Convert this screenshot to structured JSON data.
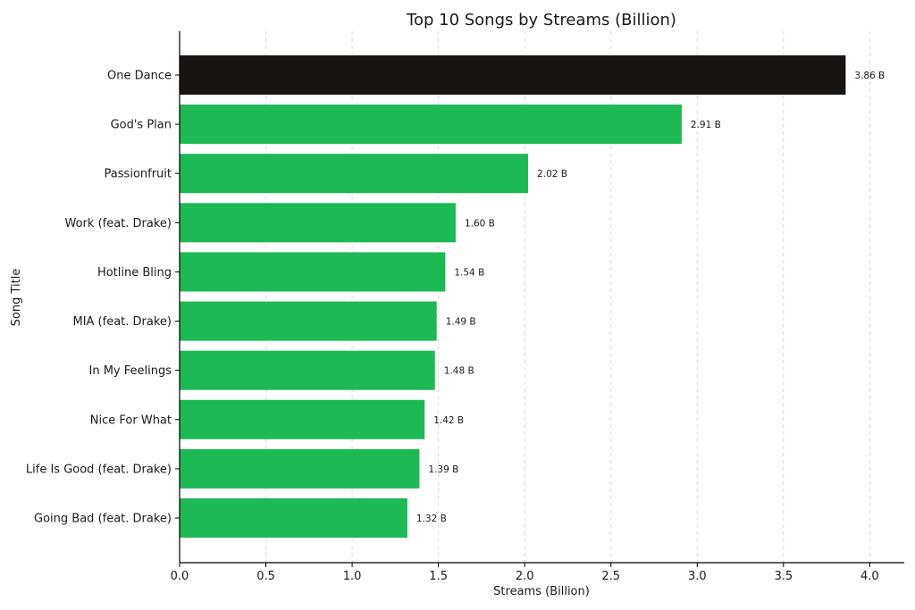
{
  "chart_data": {
    "type": "bar",
    "orientation": "horizontal",
    "title": "Top 10 Songs by Streams (Billion)",
    "xlabel": "Streams (Billion)",
    "ylabel": "Song Title",
    "xlim": [
      0,
      4.2
    ],
    "xticks": [
      0.0,
      0.5,
      1.0,
      1.5,
      2.0,
      2.5,
      3.0,
      3.5,
      4.0
    ],
    "xtick_labels": [
      "0.0",
      "0.5",
      "1.0",
      "1.5",
      "2.0",
      "2.5",
      "3.0",
      "3.5",
      "4.0"
    ],
    "grid": "vertical dashed",
    "legend": "none",
    "categories": [
      "One Dance",
      "God's Plan",
      "Passionfruit",
      "Work (feat. Drake)",
      "Hotline Bling",
      "MIA (feat. Drake)",
      "In My Feelings",
      "Nice For What",
      "Life Is Good (feat. Drake)",
      "Going Bad (feat. Drake)"
    ],
    "values": [
      3.86,
      2.91,
      2.02,
      1.6,
      1.54,
      1.49,
      1.48,
      1.42,
      1.39,
      1.32
    ],
    "data_labels": [
      "3.86 B",
      "2.91 B",
      "2.02 B",
      "1.60 B",
      "1.54 B",
      "1.49 B",
      "1.48 B",
      "1.42 B",
      "1.39 B",
      "1.32 B"
    ],
    "colors": {
      "highlight": "#191414",
      "bar": "#1DB954"
    },
    "highlight_index": 0
  }
}
